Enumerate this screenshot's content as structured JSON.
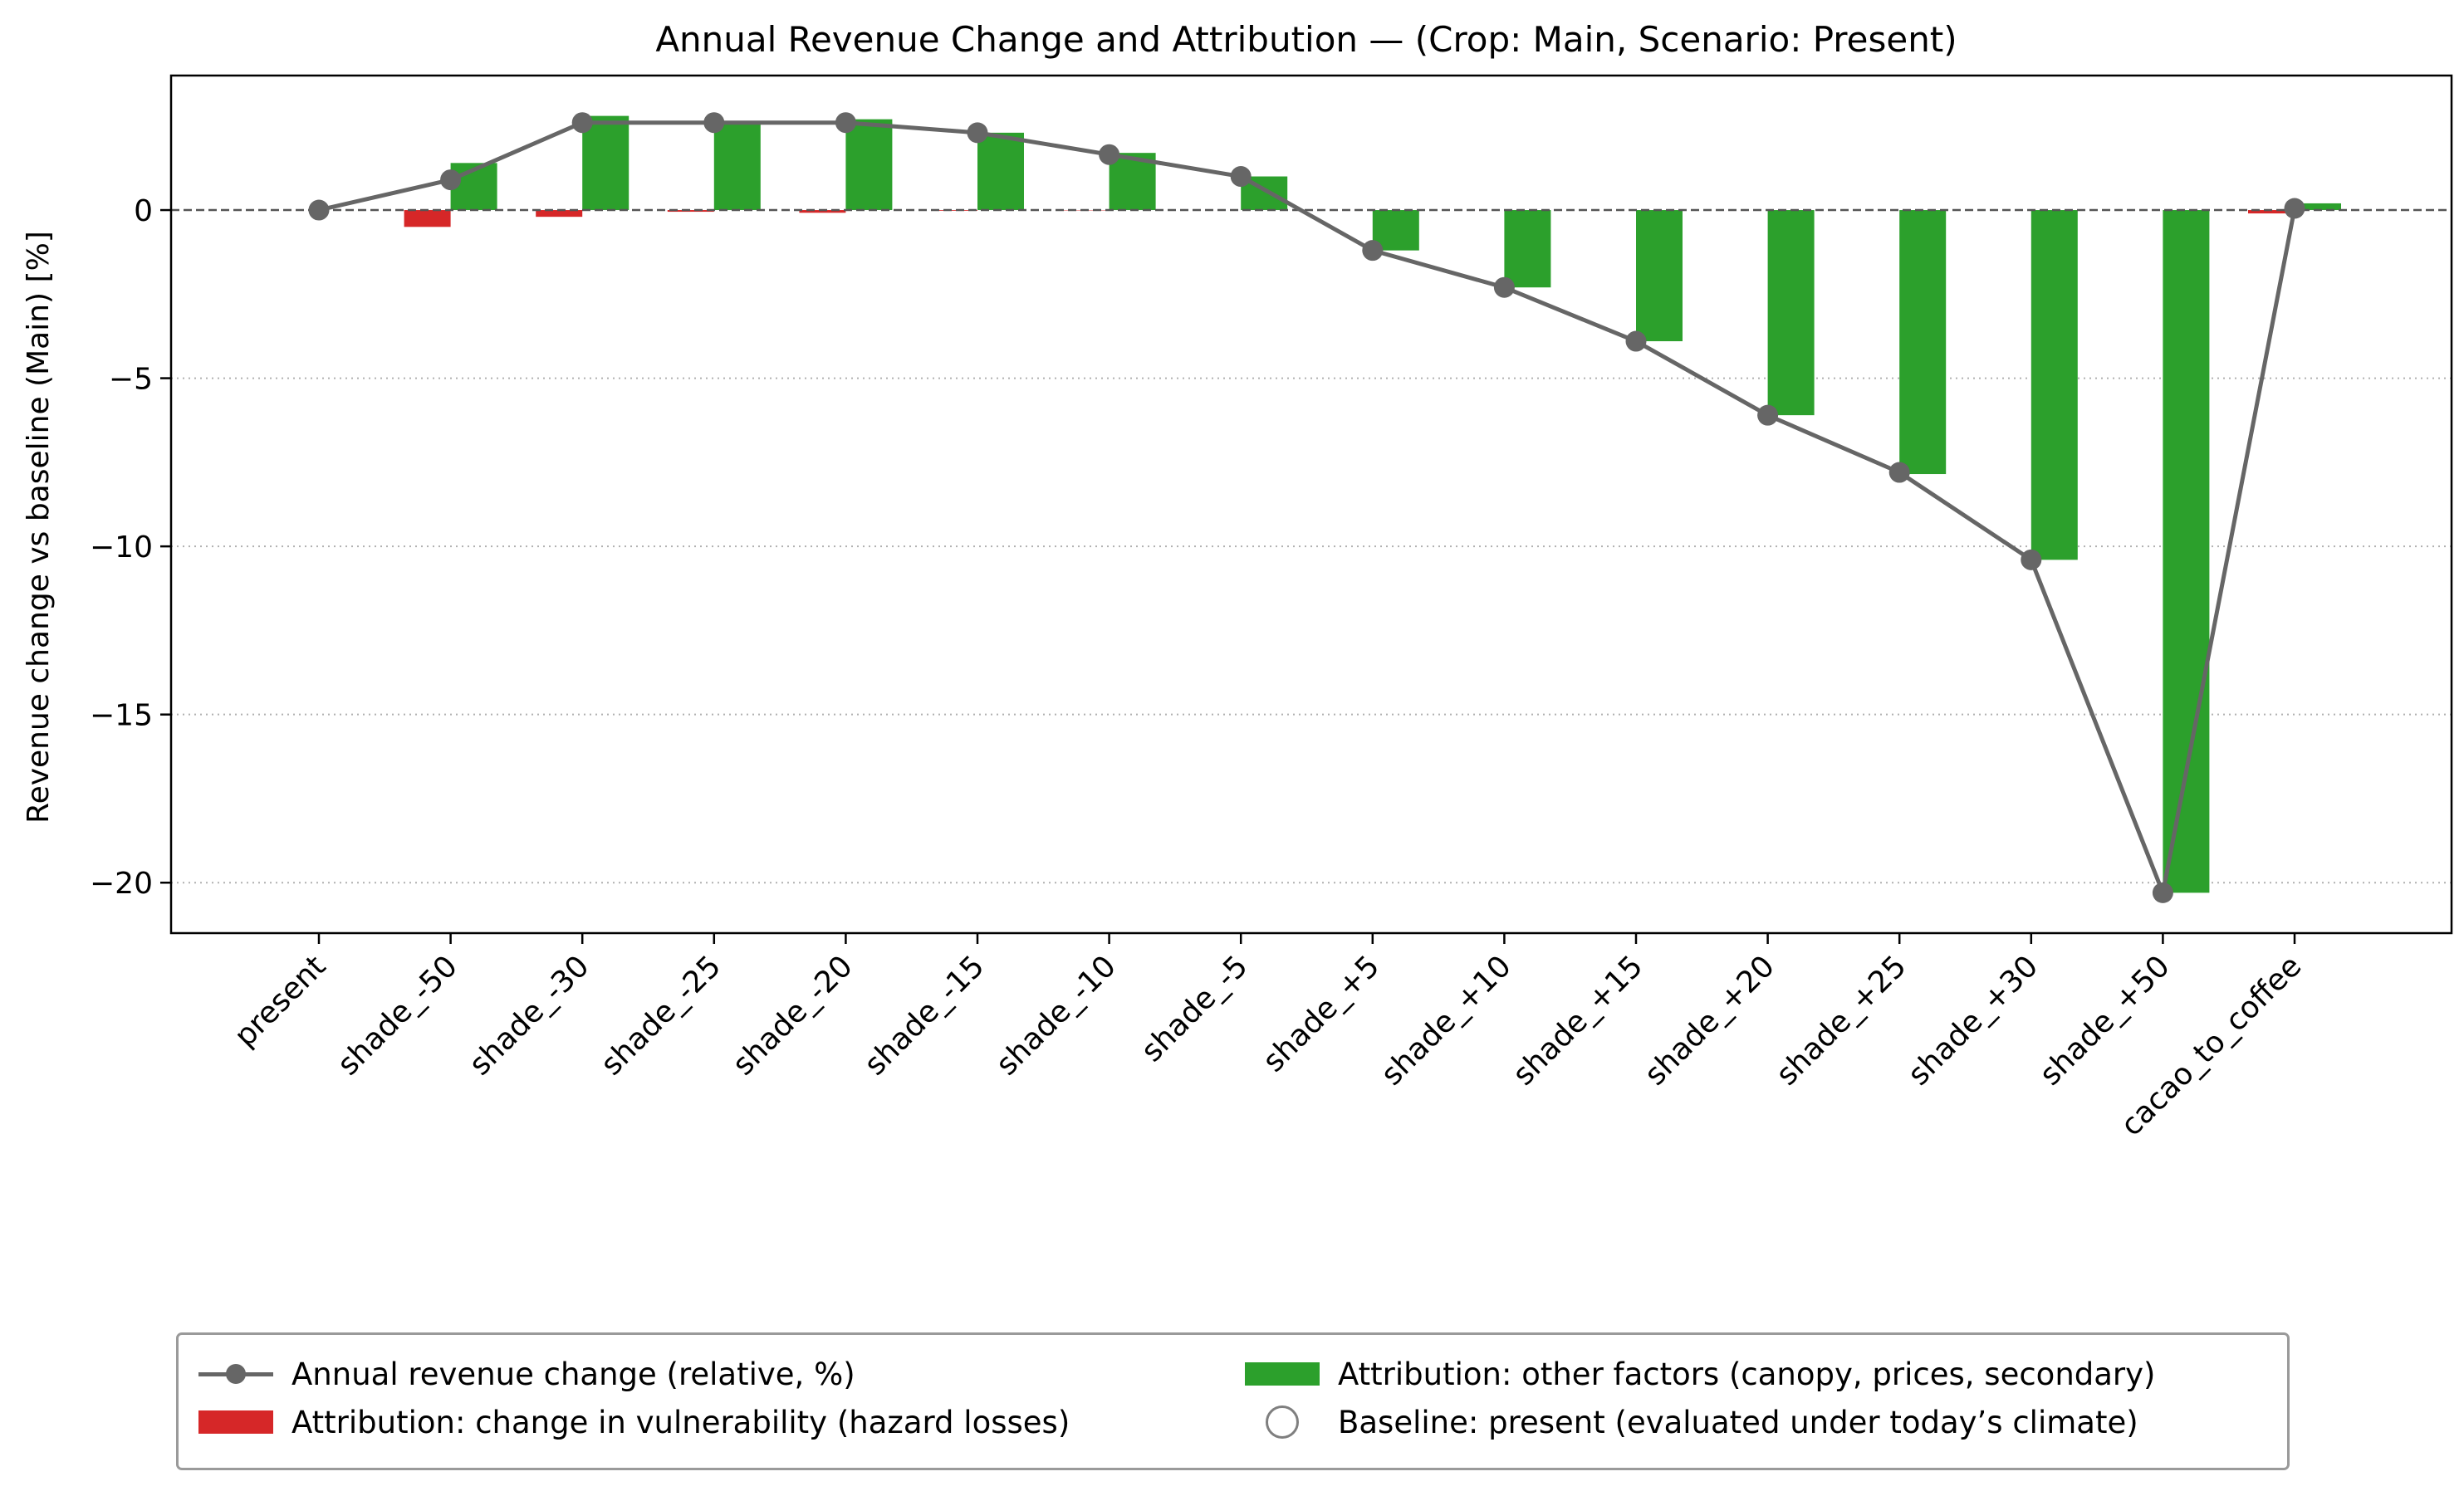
{
  "chart_data": {
    "type": "bar",
    "title": "Annual Revenue Change and Attribution — (Crop: Main, Scenario: Present)",
    "xlabel": "",
    "ylabel": "Revenue change vs baseline (Main) [%]",
    "ylim": [
      -21.5,
      4.0
    ],
    "yticks": [
      0,
      -5,
      -10,
      -15,
      -20
    ],
    "ytick_labels": [
      "0",
      "−5",
      "−10",
      "−15",
      "−20"
    ],
    "grid": "y-dotted",
    "zero_line": "dashed",
    "legend_position": "lower center, below plot",
    "categories": [
      "present",
      "shade_-50",
      "shade_-30",
      "shade_-25",
      "shade_-20",
      "shade_-15",
      "shade_-10",
      "shade_-5",
      "shade_+5",
      "shade_+10",
      "shade_+15",
      "shade_+20",
      "shade_+25",
      "shade_+30",
      "shade_+50",
      "cacao_to_coffee"
    ],
    "series": [
      {
        "name": "Annual revenue change (relative, %)",
        "kind": "line",
        "color": "#666666",
        "values": [
          0.0,
          0.9,
          2.6,
          2.6,
          2.6,
          2.3,
          1.65,
          1.0,
          -1.2,
          -2.3,
          -3.9,
          -6.1,
          -7.8,
          -10.4,
          -20.3,
          0.05
        ]
      },
      {
        "name": "Attribution: change in vulnerability (hazard losses)",
        "kind": "bar",
        "color": "#d62728",
        "values": [
          0.0,
          -0.5,
          -0.2,
          -0.05,
          -0.08,
          -0.02,
          -0.01,
          0.0,
          0.0,
          0.0,
          0.0,
          0.0,
          0.0,
          0.0,
          0.0,
          -0.1
        ]
      },
      {
        "name": "Attribution: other factors (canopy, prices, secondary)",
        "kind": "bar",
        "color": "#2ca02c",
        "values": [
          0.0,
          1.4,
          2.8,
          2.65,
          2.7,
          2.3,
          1.7,
          1.0,
          -1.2,
          -2.3,
          -3.9,
          -6.1,
          -7.85,
          -10.4,
          -20.3,
          0.2
        ]
      }
    ],
    "baseline": {
      "name": "Baseline: present (evaluated under today’s climate)",
      "category": "present",
      "value": 0.0
    }
  },
  "legend": {
    "line_label": "Annual revenue change (relative, %)",
    "red_label": "Attribution: change in vulnerability (hazard losses)",
    "green_label": "Attribution: other factors (canopy, prices, secondary)",
    "baseline_label": "Baseline: present (evaluated under today’s climate)"
  }
}
